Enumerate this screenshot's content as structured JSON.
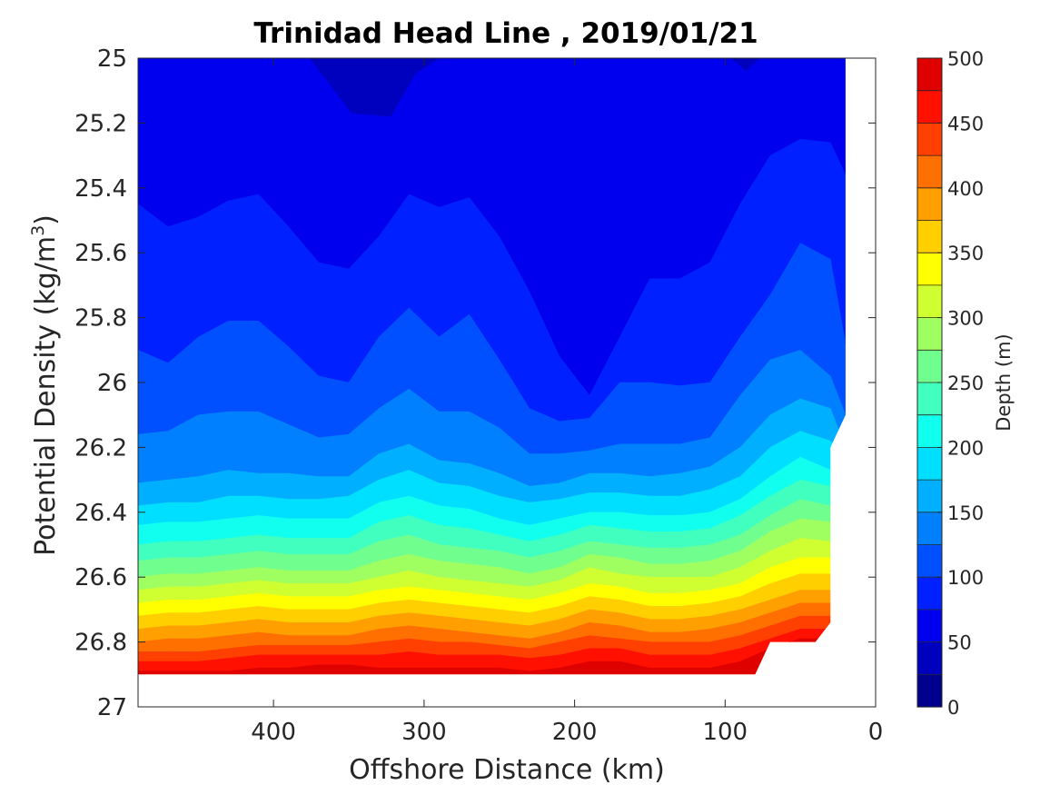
{
  "chart_data": {
    "type": "contour",
    "title": "Trinidad Head Line , 2019/01/21",
    "xlabel": "Offshore Distance (km)",
    "ylabel_prefix": "Potential Density (kg/m",
    "ylabel_sup": "3",
    "ylabel_suffix": ")",
    "colorbar_label": "Depth (m)",
    "x_reversed": true,
    "y_reversed": true,
    "xlim": [
      0,
      490
    ],
    "ylim": [
      25,
      27
    ],
    "x_ticks": [
      400,
      300,
      200,
      100,
      0
    ],
    "x_tick_labels": [
      "400",
      "300",
      "200",
      "100",
      "0"
    ],
    "y_ticks": [
      25,
      25.2,
      25.4,
      25.6,
      25.8,
      26,
      26.2,
      26.4,
      26.6,
      26.8,
      27
    ],
    "y_tick_labels": [
      "25",
      "25.2",
      "25.4",
      "25.6",
      "25.8",
      "26",
      "26.2",
      "26.4",
      "26.6",
      "26.8",
      "27"
    ],
    "colorbar": {
      "min": 0,
      "max": 500,
      "levels": [
        0,
        25,
        50,
        75,
        100,
        125,
        150,
        175,
        200,
        225,
        250,
        275,
        300,
        325,
        350,
        375,
        400,
        425,
        450,
        475,
        500
      ],
      "tick_values": [
        0,
        50,
        100,
        150,
        200,
        250,
        300,
        350,
        400,
        450,
        500
      ],
      "tick_labels": [
        "0",
        "50",
        "100",
        "150",
        "200",
        "250",
        "300",
        "350",
        "400",
        "450",
        "500"
      ],
      "colors": [
        "#00008f",
        "#0000bf",
        "#0000ef",
        "#0020ff",
        "#0050ff",
        "#0080ff",
        "#00afff",
        "#00dfff",
        "#10ffef",
        "#40ffbf",
        "#70ff8f",
        "#9fff60",
        "#cfff30",
        "#ffff00",
        "#ffcf00",
        "#ff9f00",
        "#ff7000",
        "#ff4000",
        "#ff1000",
        "#df0000",
        "#af0000"
      ]
    },
    "grid": false,
    "contour_x_km": [
      490,
      470,
      450,
      430,
      410,
      390,
      370,
      350,
      330,
      310,
      290,
      270,
      250,
      230,
      210,
      190,
      170,
      150,
      130,
      110,
      90,
      70,
      50,
      30,
      20
    ],
    "isopycnal_depth_levels_m": [
      75,
      100,
      125,
      150,
      175,
      200,
      225,
      250,
      275,
      300,
      325,
      350,
      375,
      400,
      425,
      450,
      475
    ],
    "isopycnal_sigma_theta": [
      [
        25.45,
        25.52,
        25.49,
        25.44,
        25.42,
        25.52,
        25.63,
        25.65,
        25.55,
        25.42,
        25.46,
        25.43,
        25.55,
        25.72,
        25.92,
        26.04,
        25.86,
        25.68,
        25.68,
        25.63,
        25.45,
        25.3,
        25.25,
        25.26,
        25.36
      ],
      [
        25.9,
        25.94,
        25.86,
        25.81,
        25.81,
        25.89,
        25.98,
        26.0,
        25.86,
        25.77,
        25.86,
        25.79,
        25.93,
        26.08,
        26.12,
        26.11,
        26.0,
        26.0,
        26.01,
        26.0,
        25.86,
        25.73,
        25.57,
        25.62,
        25.88
      ],
      [
        26.16,
        26.15,
        26.1,
        26.09,
        26.09,
        26.13,
        26.17,
        26.16,
        26.08,
        26.02,
        26.09,
        26.09,
        26.14,
        26.22,
        26.22,
        26.21,
        26.19,
        26.19,
        26.19,
        26.17,
        26.04,
        25.93,
        25.9,
        25.98,
        26.1
      ],
      [
        26.31,
        26.3,
        26.29,
        26.27,
        26.28,
        26.28,
        26.29,
        26.29,
        26.22,
        26.19,
        26.24,
        26.25,
        26.28,
        26.32,
        26.31,
        26.28,
        26.28,
        26.29,
        26.28,
        26.26,
        26.2,
        26.1,
        26.05,
        26.08,
        26.2
      ],
      [
        26.38,
        26.37,
        26.37,
        26.35,
        26.35,
        26.36,
        26.36,
        26.35,
        26.3,
        26.27,
        26.31,
        26.32,
        26.35,
        26.37,
        26.36,
        26.34,
        26.34,
        26.35,
        26.35,
        26.33,
        26.29,
        26.2,
        26.15,
        26.18,
        26.25
      ],
      [
        26.44,
        26.43,
        26.43,
        26.42,
        26.41,
        26.42,
        26.42,
        26.42,
        26.37,
        26.35,
        26.38,
        26.39,
        26.42,
        26.44,
        26.42,
        26.4,
        26.4,
        26.41,
        26.41,
        26.4,
        26.36,
        26.29,
        26.23,
        26.27,
        26.33
      ],
      [
        26.5,
        26.49,
        26.49,
        26.48,
        26.47,
        26.48,
        26.48,
        26.48,
        26.43,
        26.41,
        26.44,
        26.45,
        26.47,
        26.49,
        26.47,
        26.44,
        26.45,
        26.46,
        26.46,
        26.45,
        26.41,
        26.35,
        26.3,
        26.32,
        26.39
      ],
      [
        26.55,
        26.54,
        26.54,
        26.53,
        26.52,
        26.53,
        26.53,
        26.53,
        26.49,
        26.47,
        26.5,
        26.51,
        26.52,
        26.54,
        26.52,
        26.49,
        26.5,
        26.51,
        26.51,
        26.5,
        26.47,
        26.41,
        26.36,
        26.38,
        26.44
      ],
      [
        26.6,
        26.59,
        26.59,
        26.58,
        26.57,
        26.58,
        26.58,
        26.58,
        26.55,
        26.53,
        26.55,
        26.56,
        26.57,
        26.59,
        26.57,
        26.53,
        26.54,
        26.56,
        26.56,
        26.55,
        26.52,
        26.46,
        26.42,
        26.43,
        26.48
      ],
      [
        26.64,
        26.63,
        26.63,
        26.62,
        26.61,
        26.62,
        26.62,
        26.62,
        26.6,
        26.58,
        26.6,
        26.61,
        26.62,
        26.63,
        26.61,
        26.57,
        26.59,
        26.6,
        26.6,
        26.6,
        26.57,
        26.52,
        26.48,
        26.49,
        26.53
      ],
      [
        26.68,
        26.67,
        26.67,
        26.66,
        26.65,
        26.66,
        26.66,
        26.66,
        26.64,
        26.63,
        26.64,
        26.65,
        26.66,
        26.67,
        26.65,
        26.62,
        26.63,
        26.65,
        26.65,
        26.64,
        26.62,
        26.57,
        26.54,
        26.54,
        26.58
      ],
      [
        26.72,
        26.71,
        26.71,
        26.7,
        26.69,
        26.7,
        26.7,
        26.7,
        26.68,
        26.67,
        26.68,
        26.69,
        26.7,
        26.71,
        26.69,
        26.66,
        26.67,
        26.69,
        26.69,
        26.68,
        26.66,
        26.62,
        26.59,
        26.59,
        26.62
      ],
      [
        26.76,
        26.75,
        26.75,
        26.74,
        26.73,
        26.74,
        26.74,
        26.74,
        26.72,
        26.71,
        26.72,
        26.73,
        26.74,
        26.75,
        26.73,
        26.7,
        26.71,
        26.73,
        26.73,
        26.72,
        26.7,
        26.67,
        26.64,
        26.64,
        26.67
      ],
      [
        26.8,
        26.79,
        26.79,
        26.78,
        26.77,
        26.78,
        26.78,
        26.78,
        26.76,
        26.75,
        26.76,
        26.77,
        26.78,
        26.79,
        26.77,
        26.74,
        26.75,
        26.77,
        26.77,
        26.76,
        26.74,
        26.71,
        26.68,
        26.68,
        26.71
      ],
      [
        26.83,
        26.83,
        26.83,
        26.82,
        26.81,
        26.81,
        26.81,
        26.81,
        26.8,
        26.79,
        26.8,
        26.8,
        26.81,
        26.82,
        26.8,
        26.78,
        26.79,
        26.8,
        26.8,
        26.8,
        26.78,
        26.75,
        26.72,
        26.72,
        26.75
      ],
      [
        26.86,
        26.86,
        26.86,
        26.85,
        26.84,
        26.84,
        26.84,
        26.84,
        26.84,
        26.83,
        26.84,
        26.84,
        26.84,
        26.85,
        26.84,
        26.82,
        26.82,
        26.84,
        26.84,
        26.84,
        26.82,
        26.79,
        26.76,
        26.76,
        26.78
      ],
      [
        26.89,
        26.89,
        26.89,
        26.89,
        26.88,
        26.88,
        26.87,
        26.87,
        26.88,
        26.88,
        26.88,
        26.88,
        26.88,
        26.89,
        26.88,
        26.86,
        26.86,
        26.88,
        26.88,
        26.88,
        26.86,
        26.82,
        26.79,
        26.79,
        26.81
      ]
    ],
    "shallow_pocket_regions": [
      {
        "depth_range_m": [
          25,
          50
        ],
        "x_km": [
          376,
          348,
          322,
          306,
          290
        ],
        "sigma_theta": [
          25.0,
          25.17,
          25.18,
          25.05,
          25.0
        ]
      },
      {
        "depth_range_m": [
          25,
          50
        ],
        "x_km": [
          96,
          86,
          77
        ],
        "sigma_theta": [
          25.0,
          25.04,
          25.0
        ]
      }
    ],
    "data_extent": {
      "x_km": [
        490,
        20,
        20,
        30,
        30,
        40,
        70,
        80,
        490
      ],
      "sigma_theta": [
        25.0,
        25.0,
        26.1,
        26.2,
        26.74,
        26.8,
        26.8,
        26.9,
        26.9
      ]
    }
  }
}
